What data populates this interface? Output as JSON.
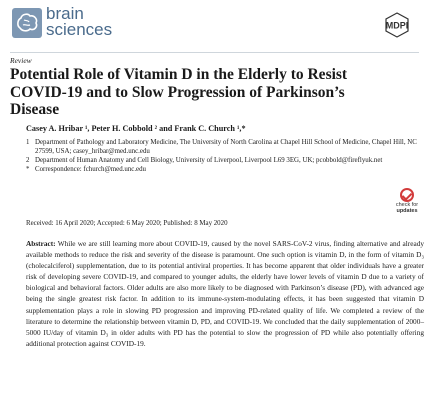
{
  "header": {
    "journal_line1": "brain",
    "journal_line2": "sciences",
    "publisher": "MDPI"
  },
  "article": {
    "type": "Review",
    "title": "Potential Role of Vitamin D in the Elderly to Resist COVID-19 and to Slow Progression of Parkinson’s Disease",
    "authors": "Casey A. Hribar ¹, Peter H. Cobbold ² and Frank C. Church ¹,*",
    "affiliations": [
      {
        "marker": "1",
        "text": "Department of Pathology and Laboratory Medicine, The University of North Carolina at Chapel Hill School of Medicine, Chapel Hill, NC 27599, USA; casey_hribar@med.unc.edu"
      },
      {
        "marker": "2",
        "text": "Department of Human Anatomy and Cell Biology, University of Liverpool, Liverpool L69 3EG, UK; pcobbold@fireflyuk.net"
      },
      {
        "marker": "*",
        "text": "Correspondence: fchurch@med.unc.edu"
      }
    ],
    "dates": "Received: 16 April 2020; Accepted: 6 May 2020; Published: 8 May 2020",
    "check_updates": {
      "line1": "check for",
      "line2": "updates"
    },
    "abstract_label": "Abstract:",
    "abstract_text": "While we are still learning more about COVID-19, caused by the novel SARS-CoV-2 virus, finding alternative and already available methods to reduce the risk and severity of the disease is paramount. One such option is vitamin D, in the form of vitamin D₃ (cholecalciferol) supplementation, due to its potential antiviral properties. It has become apparent that older individuals have a greater risk of developing severe COVID-19, and compared to younger adults, the elderly have lower levels of vitamin D due to a variety of biological and behavioral factors. Older adults are also more likely to be diagnosed with Parkinson’s disease (PD), with advanced age being the single greatest risk factor. In addition to its immune-system-modulating effects, it has been suggested that vitamin D supplementation plays a role in slowing PD progression and improving PD-related quality of life. We completed a review of the literature to determine the relationship between vitamin D, PD, and COVID-19. We concluded that the daily supplementation of 2000–5000 IU/day of vitamin D₃ in older adults with PD has the potential to slow the progression of PD while also potentially offering additional protection against COVID-19."
  }
}
